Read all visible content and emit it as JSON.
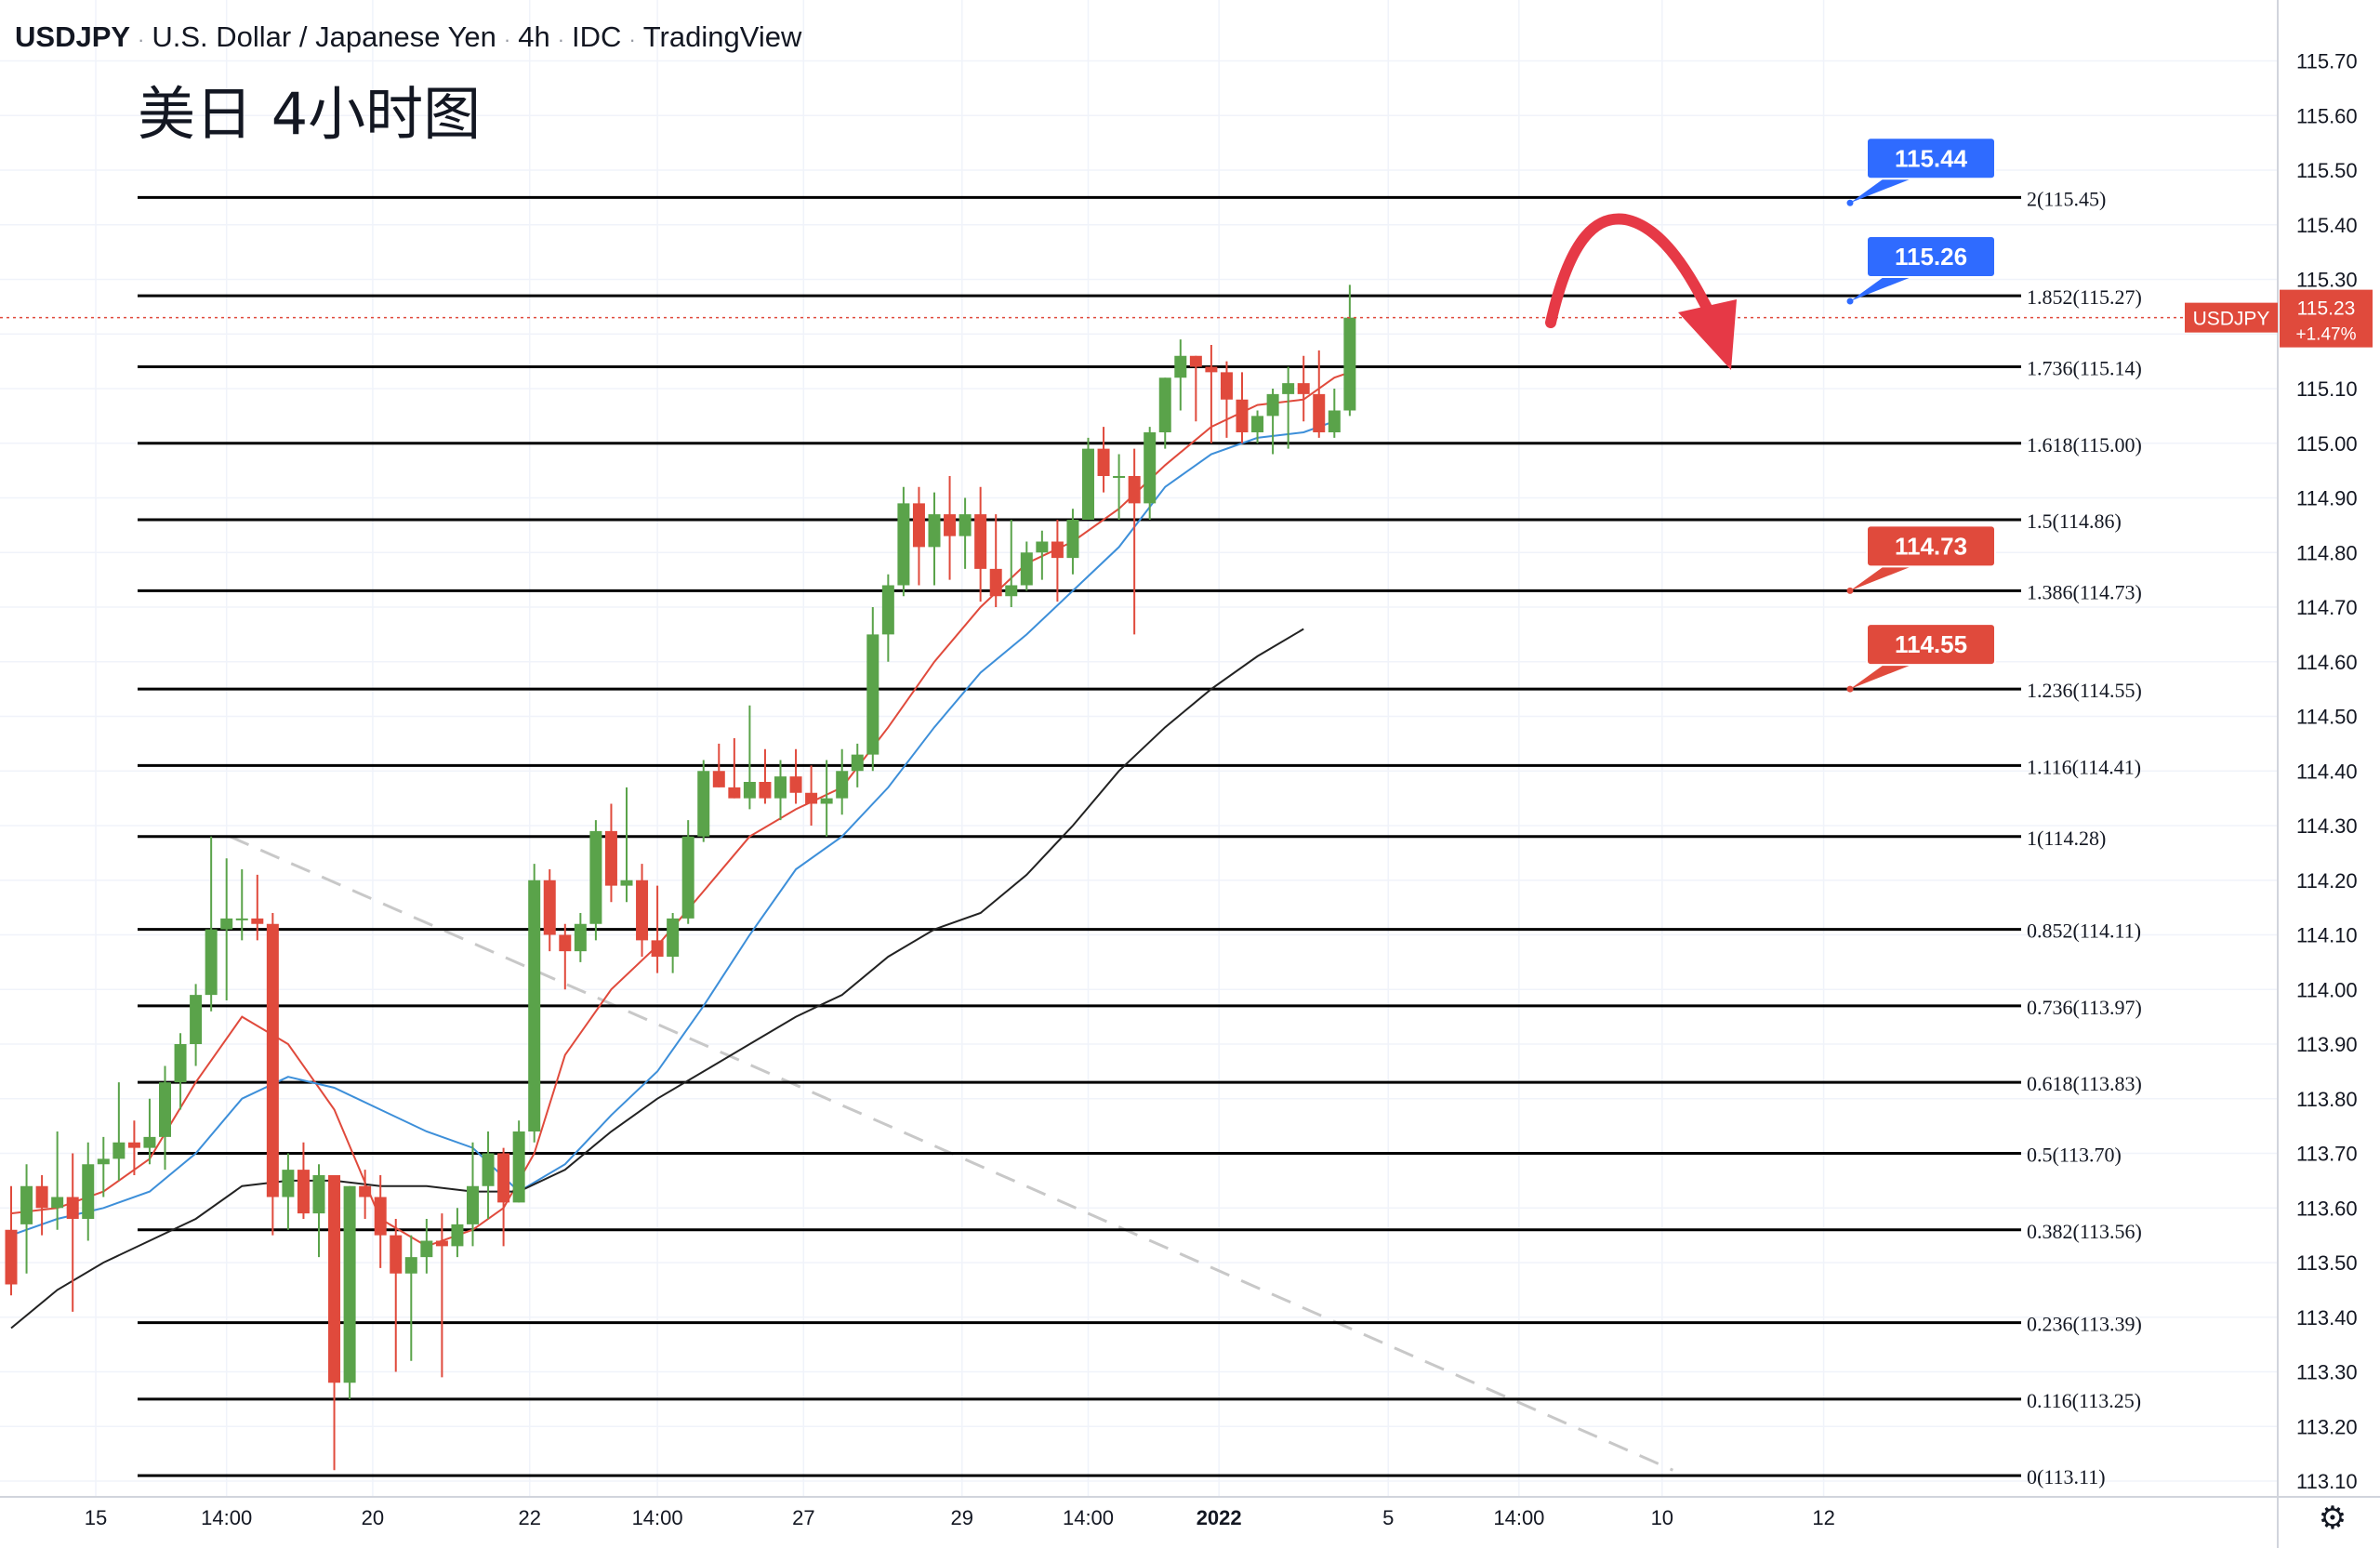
{
  "header": {
    "symbol": "USDJPY",
    "name": "U.S. Dollar / Japanese Yen",
    "interval": "4h",
    "source": "IDC",
    "platform": "TradingView"
  },
  "overlay_title": "美日 4小时图",
  "price_tag": {
    "label": "USDJPY",
    "price": "115.23",
    "change": "+1.47%"
  },
  "colors": {
    "up": "#5aa34a",
    "down": "#e04a3c",
    "ma_fast": "#e04a3c",
    "ma_mid": "#3d8fd9",
    "ma_slow": "#222222",
    "callout_blue": "#2f6bff",
    "callout_red": "#e04a3c",
    "fib_line": "#000000",
    "trendline": "#c8c8c8",
    "arrow": "#e63946"
  },
  "icons": {
    "settings": "gear-icon"
  },
  "chart_data": {
    "type": "candlestick",
    "symbol": "USDJPY",
    "timeframe": "4h",
    "ylim": [
      113.07,
      115.79
    ],
    "price_ticks": [
      113.1,
      113.2,
      113.3,
      113.4,
      113.5,
      113.6,
      113.7,
      113.8,
      113.9,
      114.0,
      114.1,
      114.2,
      114.3,
      114.4,
      114.5,
      114.6,
      114.7,
      114.8,
      114.9,
      115.0,
      115.1,
      115.2,
      115.3,
      115.4,
      115.5,
      115.6,
      115.7
    ],
    "x_ticks": [
      {
        "label": "15",
        "index": 5.5
      },
      {
        "label": "14:00",
        "index": 14
      },
      {
        "label": "20",
        "index": 23.5
      },
      {
        "label": "22",
        "index": 33.7
      },
      {
        "label": "14:00",
        "index": 42
      },
      {
        "label": "27",
        "index": 51.5
      },
      {
        "label": "29",
        "index": 61.8
      },
      {
        "label": "14:00",
        "index": 70
      },
      {
        "label": "2022",
        "index": 78.5
      },
      {
        "label": "5",
        "index": 89.5
      },
      {
        "label": "14:00",
        "index": 98
      },
      {
        "label": "10",
        "index": 107.3
      },
      {
        "label": "12",
        "index": 117.8
      }
    ],
    "candles": [
      {
        "o": 113.56,
        "h": 113.64,
        "l": 113.44,
        "c": 113.46
      },
      {
        "o": 113.57,
        "h": 113.68,
        "l": 113.48,
        "c": 113.64
      },
      {
        "o": 113.64,
        "h": 113.66,
        "l": 113.55,
        "c": 113.6
      },
      {
        "o": 113.6,
        "h": 113.74,
        "l": 113.56,
        "c": 113.62
      },
      {
        "o": 113.62,
        "h": 113.7,
        "l": 113.41,
        "c": 113.58
      },
      {
        "o": 113.58,
        "h": 113.72,
        "l": 113.54,
        "c": 113.68
      },
      {
        "o": 113.68,
        "h": 113.73,
        "l": 113.62,
        "c": 113.69
      },
      {
        "o": 113.69,
        "h": 113.83,
        "l": 113.65,
        "c": 113.72
      },
      {
        "o": 113.72,
        "h": 113.76,
        "l": 113.66,
        "c": 113.71
      },
      {
        "o": 113.71,
        "h": 113.8,
        "l": 113.68,
        "c": 113.73
      },
      {
        "o": 113.73,
        "h": 113.86,
        "l": 113.67,
        "c": 113.83
      },
      {
        "o": 113.83,
        "h": 113.92,
        "l": 113.78,
        "c": 113.9
      },
      {
        "o": 113.9,
        "h": 114.01,
        "l": 113.86,
        "c": 113.99
      },
      {
        "o": 113.99,
        "h": 114.28,
        "l": 113.96,
        "c": 114.11
      },
      {
        "o": 114.11,
        "h": 114.24,
        "l": 113.98,
        "c": 114.13
      },
      {
        "o": 114.13,
        "h": 114.22,
        "l": 114.09,
        "c": 114.13
      },
      {
        "o": 114.13,
        "h": 114.21,
        "l": 114.09,
        "c": 114.12
      },
      {
        "o": 114.12,
        "h": 114.14,
        "l": 113.55,
        "c": 113.62
      },
      {
        "o": 113.62,
        "h": 113.7,
        "l": 113.56,
        "c": 113.67
      },
      {
        "o": 113.67,
        "h": 113.72,
        "l": 113.58,
        "c": 113.59
      },
      {
        "o": 113.59,
        "h": 113.68,
        "l": 113.51,
        "c": 113.66
      },
      {
        "o": 113.66,
        "h": 113.66,
        "l": 113.12,
        "c": 113.28
      },
      {
        "o": 113.28,
        "h": 113.64,
        "l": 113.25,
        "c": 113.64
      },
      {
        "o": 113.64,
        "h": 113.67,
        "l": 113.58,
        "c": 113.62
      },
      {
        "o": 113.62,
        "h": 113.66,
        "l": 113.49,
        "c": 113.55
      },
      {
        "o": 113.55,
        "h": 113.58,
        "l": 113.3,
        "c": 113.48
      },
      {
        "o": 113.48,
        "h": 113.55,
        "l": 113.32,
        "c": 113.51
      },
      {
        "o": 113.51,
        "h": 113.58,
        "l": 113.48,
        "c": 113.54
      },
      {
        "o": 113.54,
        "h": 113.59,
        "l": 113.29,
        "c": 113.53
      },
      {
        "o": 113.53,
        "h": 113.6,
        "l": 113.51,
        "c": 113.57
      },
      {
        "o": 113.57,
        "h": 113.72,
        "l": 113.53,
        "c": 113.64
      },
      {
        "o": 113.64,
        "h": 113.74,
        "l": 113.58,
        "c": 113.7
      },
      {
        "o": 113.7,
        "h": 113.71,
        "l": 113.53,
        "c": 113.61
      },
      {
        "o": 113.61,
        "h": 113.76,
        "l": 113.61,
        "c": 113.74
      },
      {
        "o": 113.74,
        "h": 114.23,
        "l": 113.72,
        "c": 114.2
      },
      {
        "o": 114.2,
        "h": 114.22,
        "l": 114.07,
        "c": 114.1
      },
      {
        "o": 114.1,
        "h": 114.12,
        "l": 114.0,
        "c": 114.07
      },
      {
        "o": 114.07,
        "h": 114.14,
        "l": 114.05,
        "c": 114.12
      },
      {
        "o": 114.12,
        "h": 114.31,
        "l": 114.09,
        "c": 114.29
      },
      {
        "o": 114.29,
        "h": 114.34,
        "l": 114.16,
        "c": 114.19
      },
      {
        "o": 114.19,
        "h": 114.37,
        "l": 114.16,
        "c": 114.2
      },
      {
        "o": 114.2,
        "h": 114.23,
        "l": 114.06,
        "c": 114.09
      },
      {
        "o": 114.09,
        "h": 114.19,
        "l": 114.03,
        "c": 114.06
      },
      {
        "o": 114.06,
        "h": 114.14,
        "l": 114.03,
        "c": 114.13
      },
      {
        "o": 114.13,
        "h": 114.31,
        "l": 114.12,
        "c": 114.28
      },
      {
        "o": 114.28,
        "h": 114.42,
        "l": 114.27,
        "c": 114.4
      },
      {
        "o": 114.4,
        "h": 114.45,
        "l": 114.37,
        "c": 114.37
      },
      {
        "o": 114.37,
        "h": 114.46,
        "l": 114.35,
        "c": 114.35
      },
      {
        "o": 114.35,
        "h": 114.52,
        "l": 114.33,
        "c": 114.38
      },
      {
        "o": 114.38,
        "h": 114.44,
        "l": 114.34,
        "c": 114.35
      },
      {
        "o": 114.35,
        "h": 114.42,
        "l": 114.31,
        "c": 114.39
      },
      {
        "o": 114.39,
        "h": 114.44,
        "l": 114.34,
        "c": 114.36
      },
      {
        "o": 114.36,
        "h": 114.41,
        "l": 114.3,
        "c": 114.34
      },
      {
        "o": 114.34,
        "h": 114.42,
        "l": 114.28,
        "c": 114.35
      },
      {
        "o": 114.35,
        "h": 114.44,
        "l": 114.32,
        "c": 114.4
      },
      {
        "o": 114.4,
        "h": 114.45,
        "l": 114.37,
        "c": 114.43
      },
      {
        "o": 114.43,
        "h": 114.7,
        "l": 114.4,
        "c": 114.65
      },
      {
        "o": 114.65,
        "h": 114.76,
        "l": 114.6,
        "c": 114.74
      },
      {
        "o": 114.74,
        "h": 114.92,
        "l": 114.72,
        "c": 114.89
      },
      {
        "o": 114.89,
        "h": 114.92,
        "l": 114.74,
        "c": 114.81
      },
      {
        "o": 114.81,
        "h": 114.91,
        "l": 114.74,
        "c": 114.87
      },
      {
        "o": 114.87,
        "h": 114.94,
        "l": 114.75,
        "c": 114.83
      },
      {
        "o": 114.83,
        "h": 114.9,
        "l": 114.77,
        "c": 114.87
      },
      {
        "o": 114.87,
        "h": 114.92,
        "l": 114.71,
        "c": 114.77
      },
      {
        "o": 114.77,
        "h": 114.87,
        "l": 114.7,
        "c": 114.72
      },
      {
        "o": 114.72,
        "h": 114.86,
        "l": 114.7,
        "c": 114.74
      },
      {
        "o": 114.74,
        "h": 114.82,
        "l": 114.73,
        "c": 114.8
      },
      {
        "o": 114.8,
        "h": 114.84,
        "l": 114.75,
        "c": 114.82
      },
      {
        "o": 114.82,
        "h": 114.86,
        "l": 114.71,
        "c": 114.79
      },
      {
        "o": 114.79,
        "h": 114.88,
        "l": 114.76,
        "c": 114.86
      },
      {
        "o": 114.86,
        "h": 115.01,
        "l": 114.86,
        "c": 114.99
      },
      {
        "o": 114.99,
        "h": 115.03,
        "l": 114.91,
        "c": 114.94
      },
      {
        "o": 114.94,
        "h": 114.98,
        "l": 114.86,
        "c": 114.94
      },
      {
        "o": 114.94,
        "h": 114.99,
        "l": 114.65,
        "c": 114.89
      },
      {
        "o": 114.89,
        "h": 115.03,
        "l": 114.86,
        "c": 115.02
      },
      {
        "o": 115.02,
        "h": 115.12,
        "l": 114.99,
        "c": 115.12
      },
      {
        "o": 115.12,
        "h": 115.19,
        "l": 115.06,
        "c": 115.16
      },
      {
        "o": 115.16,
        "h": 115.16,
        "l": 115.04,
        "c": 115.14
      },
      {
        "o": 115.14,
        "h": 115.18,
        "l": 115.0,
        "c": 115.13
      },
      {
        "o": 115.13,
        "h": 115.15,
        "l": 115.01,
        "c": 115.08
      },
      {
        "o": 115.08,
        "h": 115.13,
        "l": 115.0,
        "c": 115.02
      },
      {
        "o": 115.02,
        "h": 115.06,
        "l": 115.0,
        "c": 115.05
      },
      {
        "o": 115.05,
        "h": 115.1,
        "l": 114.98,
        "c": 115.09
      },
      {
        "o": 115.09,
        "h": 115.14,
        "l": 114.99,
        "c": 115.11
      },
      {
        "o": 115.11,
        "h": 115.16,
        "l": 115.04,
        "c": 115.09
      },
      {
        "o": 115.09,
        "h": 115.17,
        "l": 115.01,
        "c": 115.02
      },
      {
        "o": 115.02,
        "h": 115.1,
        "l": 115.01,
        "c": 115.06
      },
      {
        "o": 115.06,
        "h": 115.29,
        "l": 115.05,
        "c": 115.23
      }
    ],
    "moving_averages": [
      {
        "period": "fast",
        "points": [
          [
            0,
            113.59
          ],
          [
            3,
            113.6
          ],
          [
            6,
            113.63
          ],
          [
            9,
            113.69
          ],
          [
            12,
            113.83
          ],
          [
            15,
            113.95
          ],
          [
            18,
            113.9
          ],
          [
            21,
            113.78
          ],
          [
            24,
            113.58
          ],
          [
            27,
            113.53
          ],
          [
            30,
            113.56
          ],
          [
            32,
            113.6
          ],
          [
            34,
            113.7
          ],
          [
            36,
            113.88
          ],
          [
            39,
            114.0
          ],
          [
            42,
            114.08
          ],
          [
            45,
            114.18
          ],
          [
            48,
            114.28
          ],
          [
            51,
            114.33
          ],
          [
            54,
            114.37
          ],
          [
            57,
            114.48
          ],
          [
            60,
            114.6
          ],
          [
            63,
            114.7
          ],
          [
            66,
            114.78
          ],
          [
            69,
            114.82
          ],
          [
            72,
            114.88
          ],
          [
            75,
            114.96
          ],
          [
            78,
            115.03
          ],
          [
            81,
            115.07
          ],
          [
            84,
            115.08
          ],
          [
            86,
            115.12
          ],
          [
            87,
            115.13
          ]
        ]
      },
      {
        "period": "mid",
        "points": [
          [
            0,
            113.55
          ],
          [
            3,
            113.58
          ],
          [
            6,
            113.6
          ],
          [
            9,
            113.63
          ],
          [
            12,
            113.7
          ],
          [
            15,
            113.8
          ],
          [
            18,
            113.84
          ],
          [
            21,
            113.82
          ],
          [
            24,
            113.78
          ],
          [
            27,
            113.74
          ],
          [
            30,
            113.71
          ],
          [
            33,
            113.63
          ],
          [
            36,
            113.68
          ],
          [
            39,
            113.77
          ],
          [
            42,
            113.85
          ],
          [
            45,
            113.97
          ],
          [
            48,
            114.1
          ],
          [
            51,
            114.22
          ],
          [
            54,
            114.28
          ],
          [
            57,
            114.37
          ],
          [
            60,
            114.48
          ],
          [
            63,
            114.58
          ],
          [
            66,
            114.65
          ],
          [
            69,
            114.73
          ],
          [
            72,
            114.81
          ],
          [
            75,
            114.92
          ],
          [
            78,
            114.98
          ],
          [
            81,
            115.01
          ],
          [
            84,
            115.02
          ],
          [
            86,
            115.04
          ]
        ]
      },
      {
        "period": "slow",
        "points": [
          [
            0,
            113.38
          ],
          [
            3,
            113.45
          ],
          [
            6,
            113.5
          ],
          [
            9,
            113.54
          ],
          [
            12,
            113.58
          ],
          [
            15,
            113.64
          ],
          [
            18,
            113.65
          ],
          [
            21,
            113.65
          ],
          [
            24,
            113.64
          ],
          [
            27,
            113.64
          ],
          [
            30,
            113.63
          ],
          [
            33,
            113.63
          ],
          [
            36,
            113.67
          ],
          [
            39,
            113.74
          ],
          [
            42,
            113.8
          ],
          [
            45,
            113.85
          ],
          [
            48,
            113.9
          ],
          [
            51,
            113.95
          ],
          [
            54,
            113.99
          ],
          [
            57,
            114.06
          ],
          [
            60,
            114.11
          ],
          [
            63,
            114.14
          ],
          [
            66,
            114.21
          ],
          [
            69,
            114.3
          ],
          [
            72,
            114.4
          ],
          [
            75,
            114.48
          ],
          [
            78,
            114.55
          ],
          [
            81,
            114.61
          ],
          [
            84,
            114.66
          ]
        ]
      }
    ],
    "fib_levels": [
      {
        "ratio": "0",
        "price": 113.11,
        "label": "0(113.11)"
      },
      {
        "ratio": "0.116",
        "price": 113.25,
        "label": "0.116(113.25)"
      },
      {
        "ratio": "0.236",
        "price": 113.39,
        "label": "0.236(113.39)"
      },
      {
        "ratio": "0.382",
        "price": 113.56,
        "label": "0.382(113.56)"
      },
      {
        "ratio": "0.5",
        "price": 113.7,
        "label": "0.5(113.70)"
      },
      {
        "ratio": "0.618",
        "price": 113.83,
        "label": "0.618(113.83)"
      },
      {
        "ratio": "0.736",
        "price": 113.97,
        "label": "0.736(113.97)"
      },
      {
        "ratio": "0.852",
        "price": 114.11,
        "label": "0.852(114.11)"
      },
      {
        "ratio": "1",
        "price": 114.28,
        "label": "1(114.28)"
      },
      {
        "ratio": "1.116",
        "price": 114.41,
        "label": "1.116(114.41)"
      },
      {
        "ratio": "1.236",
        "price": 114.55,
        "label": "1.236(114.55)"
      },
      {
        "ratio": "1.386",
        "price": 114.73,
        "label": "1.386(114.73)"
      },
      {
        "ratio": "1.5",
        "price": 114.86,
        "label": "1.5(114.86)"
      },
      {
        "ratio": "1.618",
        "price": 115.0,
        "label": "1.618(115.00)"
      },
      {
        "ratio": "1.736",
        "price": 115.14,
        "label": "1.736(115.14)"
      },
      {
        "ratio": "1.852",
        "price": 115.27,
        "label": "1.852(115.27)"
      },
      {
        "ratio": "2",
        "price": 115.45,
        "label": "2(115.45)"
      }
    ],
    "callouts": [
      {
        "text": "115.44",
        "price": 115.44,
        "color": "blue"
      },
      {
        "text": "115.26",
        "price": 115.26,
        "color": "blue"
      },
      {
        "text": "114.73",
        "price": 114.73,
        "color": "red"
      },
      {
        "text": "114.55",
        "price": 114.55,
        "color": "red"
      }
    ],
    "trendline": {
      "style": "dashed",
      "from": {
        "index": 6,
        "price": 114.28
      },
      "to": {
        "index": 108,
        "price": 113.12
      }
    },
    "current_price": 115.23,
    "annotation": "curved red arrow pointing down after top"
  }
}
